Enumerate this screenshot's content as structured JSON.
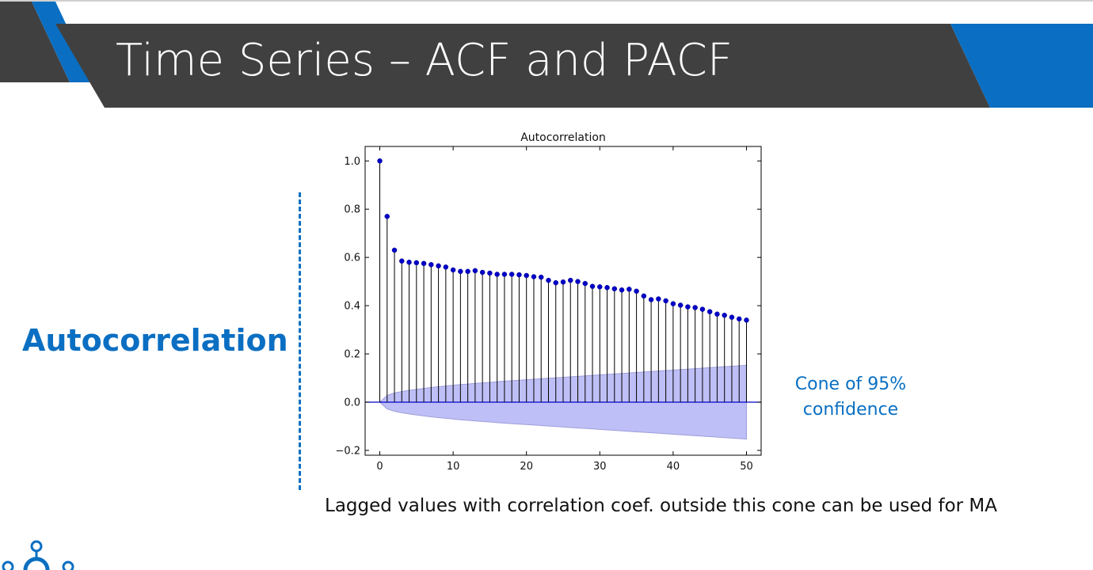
{
  "slide": {
    "title": "Time Series – ACF and PACF",
    "side_label": "Autocorrelation",
    "cone_note": [
      "Cone of 95%",
      "confidence"
    ],
    "caption": "Lagged values with correlation coef. outside this cone  can be used for MA"
  },
  "colors": {
    "banner": "#404040",
    "accent_blue": "#0a6fc2",
    "marker": "#0000c8",
    "cone_fill": "#bfbff7",
    "cone_edge": "#9e9edc"
  },
  "chart_data": {
    "type": "stem",
    "title": "Autocorrelation",
    "xlabel": "",
    "ylabel": "",
    "xlim": [
      -2,
      52
    ],
    "ylim": [
      -0.22,
      1.06
    ],
    "x_ticks": [
      0,
      10,
      20,
      30,
      40,
      50
    ],
    "y_ticks": [
      -0.2,
      0.0,
      0.2,
      0.4,
      0.6,
      0.8,
      1.0
    ],
    "x_tick_labels": [
      "0",
      "10",
      "20",
      "30",
      "40",
      "50"
    ],
    "y_tick_labels": [
      "−0.2",
      "0.0",
      "0.2",
      "0.4",
      "0.6",
      "0.8",
      "1.0"
    ],
    "grid": false,
    "lags": [
      0,
      1,
      2,
      3,
      4,
      5,
      6,
      7,
      8,
      9,
      10,
      11,
      12,
      13,
      14,
      15,
      16,
      17,
      18,
      19,
      20,
      21,
      22,
      23,
      24,
      25,
      26,
      27,
      28,
      29,
      30,
      31,
      32,
      33,
      34,
      35,
      36,
      37,
      38,
      39,
      40,
      41,
      42,
      43,
      44,
      45,
      46,
      47,
      48,
      49,
      50
    ],
    "values": [
      1.0,
      0.77,
      0.63,
      0.585,
      0.58,
      0.578,
      0.575,
      0.57,
      0.565,
      0.56,
      0.548,
      0.542,
      0.542,
      0.545,
      0.538,
      0.535,
      0.53,
      0.53,
      0.53,
      0.528,
      0.525,
      0.52,
      0.518,
      0.505,
      0.495,
      0.498,
      0.505,
      0.5,
      0.492,
      0.48,
      0.478,
      0.475,
      0.47,
      0.465,
      0.468,
      0.46,
      0.44,
      0.425,
      0.428,
      0.42,
      0.408,
      0.402,
      0.395,
      0.392,
      0.385,
      0.375,
      0.365,
      0.36,
      0.352,
      0.345,
      0.34
    ],
    "confidence_upper": [
      0.0,
      0.028,
      0.038,
      0.044,
      0.049,
      0.053,
      0.057,
      0.061,
      0.064,
      0.067,
      0.07,
      0.073,
      0.075,
      0.078,
      0.08,
      0.082,
      0.085,
      0.087,
      0.089,
      0.091,
      0.093,
      0.095,
      0.097,
      0.099,
      0.101,
      0.103,
      0.105,
      0.107,
      0.109,
      0.111,
      0.113,
      0.115,
      0.117,
      0.119,
      0.121,
      0.123,
      0.125,
      0.127,
      0.129,
      0.131,
      0.133,
      0.135,
      0.137,
      0.139,
      0.141,
      0.143,
      0.145,
      0.147,
      0.149,
      0.151,
      0.153
    ],
    "confidence_lower": [
      0.0,
      -0.028,
      -0.038,
      -0.044,
      -0.049,
      -0.053,
      -0.057,
      -0.061,
      -0.064,
      -0.067,
      -0.07,
      -0.073,
      -0.075,
      -0.078,
      -0.08,
      -0.082,
      -0.085,
      -0.087,
      -0.089,
      -0.091,
      -0.093,
      -0.095,
      -0.097,
      -0.099,
      -0.101,
      -0.103,
      -0.105,
      -0.107,
      -0.109,
      -0.111,
      -0.113,
      -0.115,
      -0.117,
      -0.119,
      -0.121,
      -0.123,
      -0.125,
      -0.127,
      -0.129,
      -0.131,
      -0.133,
      -0.135,
      -0.137,
      -0.139,
      -0.141,
      -0.143,
      -0.145,
      -0.147,
      -0.149,
      -0.151,
      -0.153
    ]
  }
}
